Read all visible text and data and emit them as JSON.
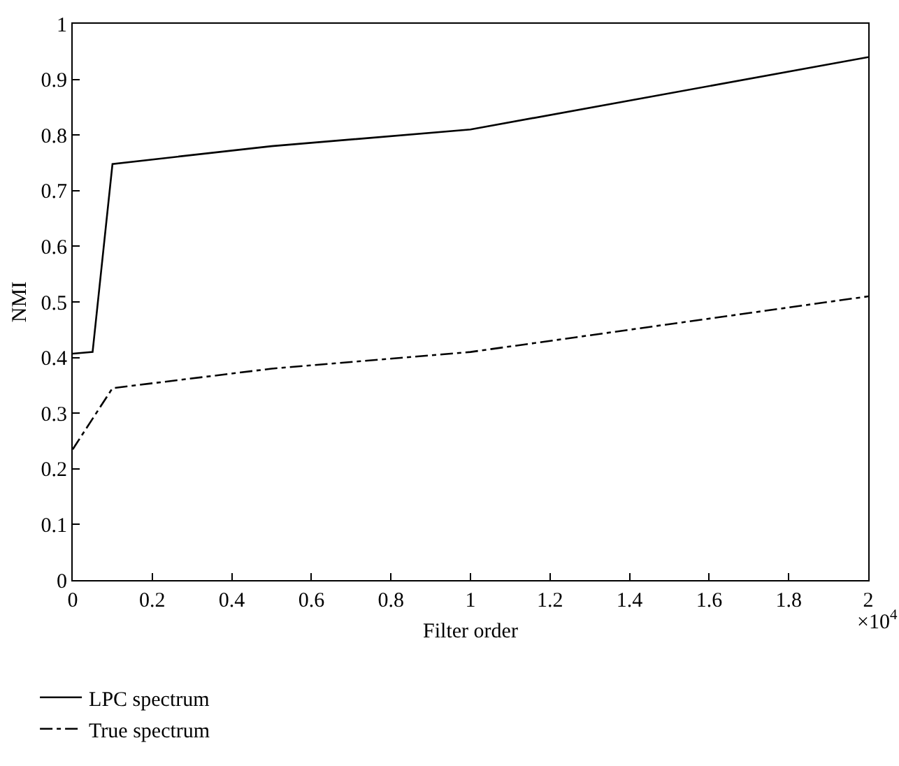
{
  "chart_data": {
    "type": "line",
    "xlabel": "Filter order",
    "ylabel": "NMI",
    "xlim": [
      0,
      2
    ],
    "xticks": [
      0,
      0.2,
      0.4,
      0.6,
      0.8,
      1,
      1.2,
      1.4,
      1.6,
      1.8,
      2
    ],
    "ylim": [
      0,
      1
    ],
    "yticks": [
      0,
      0.1,
      0.2,
      0.3,
      0.4,
      0.5,
      0.6,
      0.7,
      0.8,
      0.9,
      1
    ],
    "annotations": [
      "×10$^{4}$"
    ],
    "legend": "bottom left",
    "marker": "none",
    "series": [
      {
        "name": "LPC spectrum",
        "color": "#000000",
        "line_style": "solid",
        "x": [
          0,
          0.05,
          0.1,
          0.5,
          1,
          2
        ],
        "values": [
          0.407,
          0.41,
          0.748,
          0.78,
          0.81,
          0.94
        ]
      },
      {
        "name": "True spectrum",
        "color": "#000000",
        "line_style": "dashdot",
        "x": [
          0,
          0.1,
          0.5,
          1,
          2
        ],
        "values": [
          0.235,
          0.345,
          0.38,
          0.41,
          0.51
        ]
      }
    ]
  }
}
